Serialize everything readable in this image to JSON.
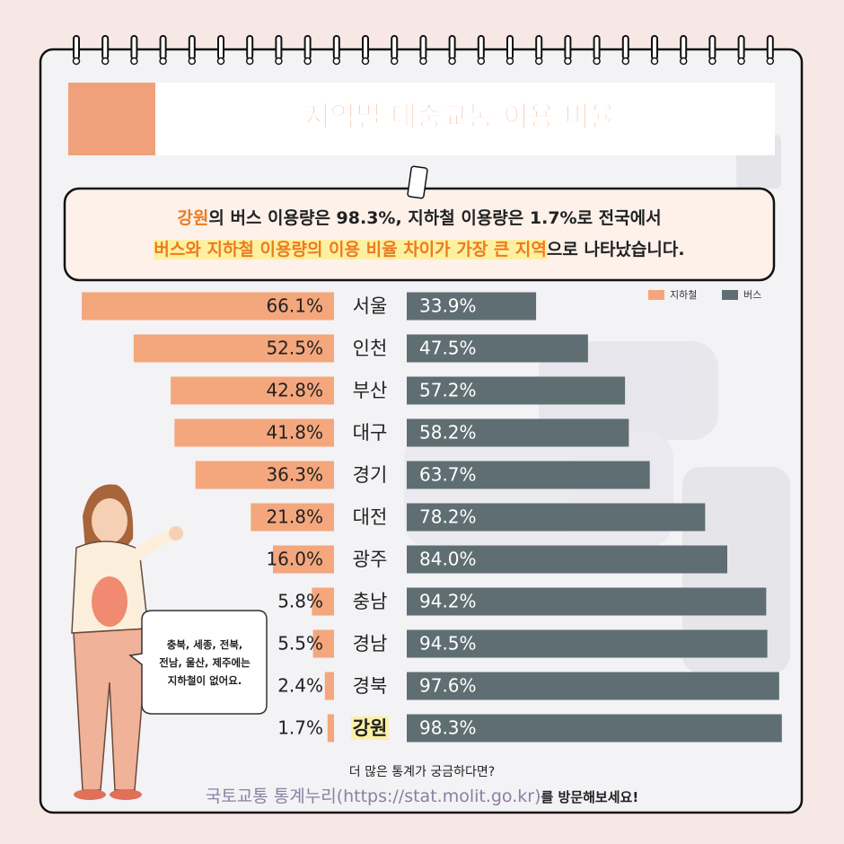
{
  "chart_data": {
    "type": "butterfly",
    "title": "지역별 대중교통 이용 비율",
    "summary": [
      [
        "강원",
        "의 버스 이용량은 98.3%, 지하철 이용량은 1.7%로 전국에서"
      ],
      [
        "버스와 지하철 이용량의 이용 비율 차이가 가장 큰 지역",
        "으로 나타났습니다."
      ]
    ],
    "categories": [
      "서울",
      "인천",
      "부산",
      "대구",
      "경기",
      "대전",
      "광주",
      "충남",
      "경남",
      "경북",
      "강원"
    ],
    "series": [
      {
        "name": "지하철",
        "color": "#f4a77c",
        "values": [
          66.1,
          52.5,
          42.8,
          41.8,
          36.3,
          21.8,
          16.0,
          5.8,
          5.5,
          2.4,
          1.7
        ],
        "value_labels": [
          "66.1%",
          "52.5%",
          "42.8%",
          "41.8%",
          "36.3%",
          "21.8%",
          "16.0%",
          "5.8%",
          "5.5%",
          "2.4%",
          "1.7%"
        ]
      },
      {
        "name": "버스",
        "color": "#5f6e72",
        "values": [
          33.9,
          47.5,
          57.2,
          58.2,
          63.7,
          78.2,
          84.0,
          94.2,
          94.5,
          97.6,
          98.3
        ],
        "value_labels": [
          "33.9%",
          "47.5%",
          "57.2%",
          "58.2%",
          "63.7%",
          "78.2%",
          "84.0%",
          "94.2%",
          "94.5%",
          "97.6%",
          "98.3%"
        ]
      }
    ],
    "xlim": [
      0,
      100
    ],
    "note": [
      "충북, 세종, 전북,",
      "전남, 울산, 제주에는",
      "지하철이 없어요."
    ],
    "footer": {
      "question": "더 많은 통계가 궁금하다면?",
      "link": "국토교통 통계누리(https://stat.molit.go.kr)",
      "suffix": "를 방문해보세요!"
    }
  }
}
